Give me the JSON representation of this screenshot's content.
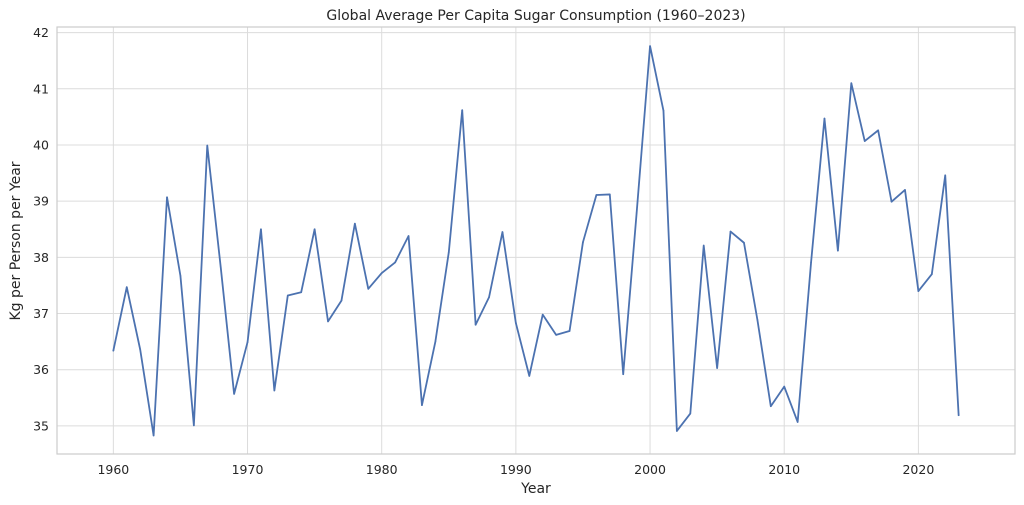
{
  "chart_data": {
    "type": "line",
    "title": "Global Average Per Capita Sugar Consumption (1960–2023)",
    "xlabel": "Year",
    "ylabel": "Kg per Person per Year",
    "xlim": [
      1955.8,
      2027.2
    ],
    "ylim": [
      34.5,
      42.1
    ],
    "xticks": [
      1960,
      1970,
      1980,
      1990,
      2000,
      2010,
      2020
    ],
    "yticks": [
      35,
      36,
      37,
      38,
      39,
      40,
      41,
      42
    ],
    "grid": true,
    "line_color": "#4c72b0",
    "series": [
      {
        "x": [
          1960,
          1961,
          1962,
          1963,
          1964,
          1965,
          1966,
          1967,
          1968,
          1969,
          1970,
          1971,
          1972,
          1973,
          1974,
          1975,
          1976,
          1977,
          1978,
          1979,
          1980,
          1981,
          1982,
          1983,
          1984,
          1985,
          1986,
          1987,
          1988,
          1989,
          1990,
          1991,
          1992,
          1993,
          1994,
          1995,
          1996,
          1997,
          1998,
          1999,
          2000,
          2001,
          2002,
          2003,
          2004,
          2005,
          2006,
          2007,
          2008,
          2009,
          2010,
          2011,
          2012,
          2013,
          2014,
          2015,
          2016,
          2017,
          2018,
          2019,
          2020,
          2021,
          2022,
          2023
        ],
        "values": [
          36.34,
          37.47,
          36.36,
          34.83,
          39.07,
          37.67,
          35.01,
          39.99,
          37.83,
          35.57,
          36.49,
          38.5,
          35.63,
          37.32,
          37.38,
          38.5,
          36.86,
          37.23,
          38.6,
          37.44,
          37.72,
          37.91,
          38.38,
          35.37,
          36.5,
          38.09,
          40.62,
          36.8,
          37.29,
          38.45,
          36.83,
          35.89,
          36.98,
          36.62,
          36.69,
          38.27,
          39.11,
          39.12,
          35.92,
          38.79,
          41.76,
          40.61,
          34.91,
          35.22,
          38.21,
          36.03,
          38.46,
          38.26,
          36.89,
          35.35,
          35.7,
          35.07,
          37.91,
          40.47,
          38.12,
          41.1,
          40.07,
          40.26,
          38.99,
          39.2,
          37.4,
          37.7,
          39.46,
          35.19
        ]
      }
    ]
  }
}
